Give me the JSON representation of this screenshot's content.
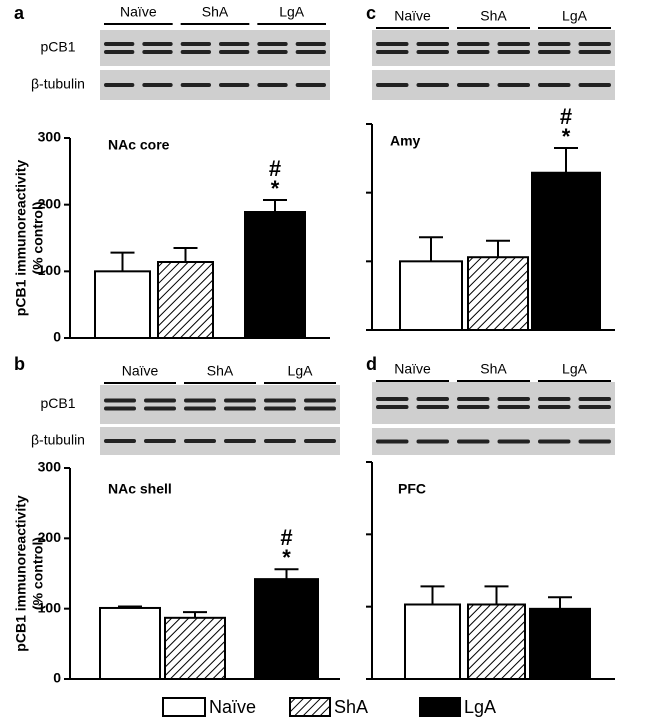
{
  "chart_data": [
    {
      "type": "bar",
      "panel": "a",
      "title": "NAc core",
      "ylabel": [
        "pCB1 immunoreactivity",
        "(% control)"
      ],
      "blot_groups": [
        "Naïve",
        "ShA",
        "LgA"
      ],
      "blot_rows": [
        "pCB1",
        "β-tubulin"
      ],
      "categories": [
        "Naïve",
        "ShA",
        "LgA"
      ],
      "values": [
        100,
        114,
        189
      ],
      "errors": [
        28,
        21,
        18
      ],
      "colors": [
        "#ffffff",
        "#ffffff",
        "#000000"
      ],
      "hatch": [
        false,
        true,
        false
      ],
      "annotations": [
        {
          "category": "LgA",
          "labels": [
            "#",
            "*"
          ]
        }
      ],
      "ylim": [
        0,
        300
      ],
      "yticks": [
        0,
        100,
        200,
        300
      ],
      "ytick_labels": true
    },
    {
      "type": "bar",
      "panel": "b",
      "title": "NAc shell",
      "ylabel": [
        "pCB1 immunoreactivity",
        "(% control)"
      ],
      "blot_groups": [
        "Naïve",
        "ShA",
        "LgA"
      ],
      "blot_rows": [
        "pCB1",
        "β-tubulin"
      ],
      "categories": [
        "Naïve",
        "ShA",
        "LgA"
      ],
      "values": [
        101,
        87,
        142
      ],
      "errors": [
        2,
        8,
        14
      ],
      "colors": [
        "#ffffff",
        "#ffffff",
        "#000000"
      ],
      "hatch": [
        false,
        true,
        false
      ],
      "annotations": [
        {
          "category": "LgA",
          "labels": [
            "#",
            "*"
          ]
        }
      ],
      "ylim": [
        0,
        300
      ],
      "yticks": [
        0,
        100,
        200,
        300
      ],
      "ytick_labels": true
    },
    {
      "type": "bar",
      "panel": "c",
      "title": "Amy",
      "blot_groups": [
        "Naïve",
        "ShA",
        "LgA"
      ],
      "categories": [
        "Naïve",
        "ShA",
        "LgA"
      ],
      "values": [
        100,
        106,
        229
      ],
      "errors": [
        35,
        24,
        36
      ],
      "colors": [
        "#ffffff",
        "#ffffff",
        "#000000"
      ],
      "hatch": [
        false,
        true,
        false
      ],
      "annotations": [
        {
          "category": "LgA",
          "labels": [
            "#",
            "*"
          ]
        }
      ],
      "ylim": [
        0,
        300
      ],
      "yticks": [
        0,
        100,
        200,
        300
      ],
      "ytick_labels": false
    },
    {
      "type": "bar",
      "panel": "d",
      "title": "PFC",
      "blot_groups": [
        "Naïve",
        "ShA",
        "LgA"
      ],
      "categories": [
        "Naïve",
        "ShA",
        "LgA"
      ],
      "values": [
        103,
        103,
        97
      ],
      "errors": [
        25,
        25,
        16
      ],
      "colors": [
        "#ffffff",
        "#ffffff",
        "#000000"
      ],
      "hatch": [
        false,
        true,
        false
      ],
      "ylim": [
        0,
        300
      ],
      "yticks": [
        0,
        100,
        200,
        300
      ],
      "ytick_labels": false
    }
  ],
  "legend": [
    "Naïve",
    "ShA",
    "LgA"
  ]
}
